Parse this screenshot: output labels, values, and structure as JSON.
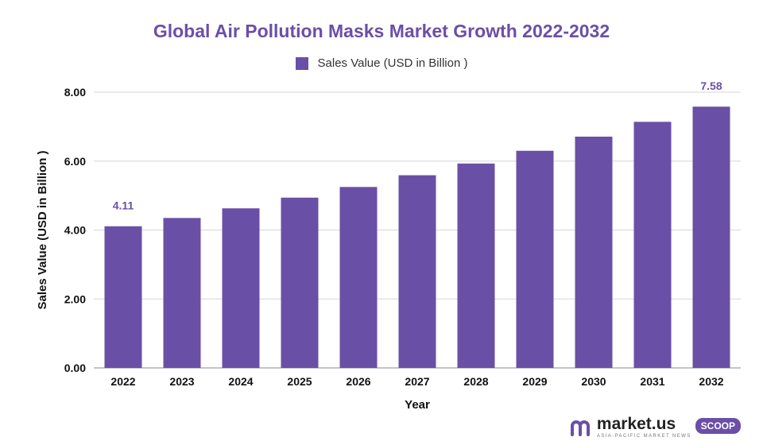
{
  "chart_data": {
    "type": "bar",
    "title": "Global Air Pollution Masks Market Growth 2022-2032",
    "xlabel": "Year",
    "ylabel": "Sales Value (USD in Billion )",
    "categories": [
      "2022",
      "2023",
      "2024",
      "2025",
      "2026",
      "2027",
      "2028",
      "2029",
      "2030",
      "2031",
      "2032"
    ],
    "series": [
      {
        "name": "Sales Value (USD in Billion )",
        "values": [
          4.11,
          4.35,
          4.63,
          4.94,
          5.25,
          5.59,
          5.93,
          6.3,
          6.71,
          7.14,
          7.58
        ]
      }
    ],
    "data_labels": [
      {
        "category": "2022",
        "text": "4.11"
      },
      {
        "category": "2032",
        "text": "7.58"
      }
    ],
    "y_ticks": [
      "0.00",
      "2.00",
      "4.00",
      "6.00",
      "8.00"
    ],
    "ylim": [
      0,
      8
    ],
    "grid": true,
    "legend_position": "top-center",
    "colors": {
      "bar": "#6a4fa6",
      "title": "#6b4fa6",
      "grid": "#d6d6d6"
    }
  },
  "branding": {
    "name": "market.us",
    "tagline": "ASIA-PACIFIC MARKET NEWS",
    "badge": "SCOOP"
  }
}
